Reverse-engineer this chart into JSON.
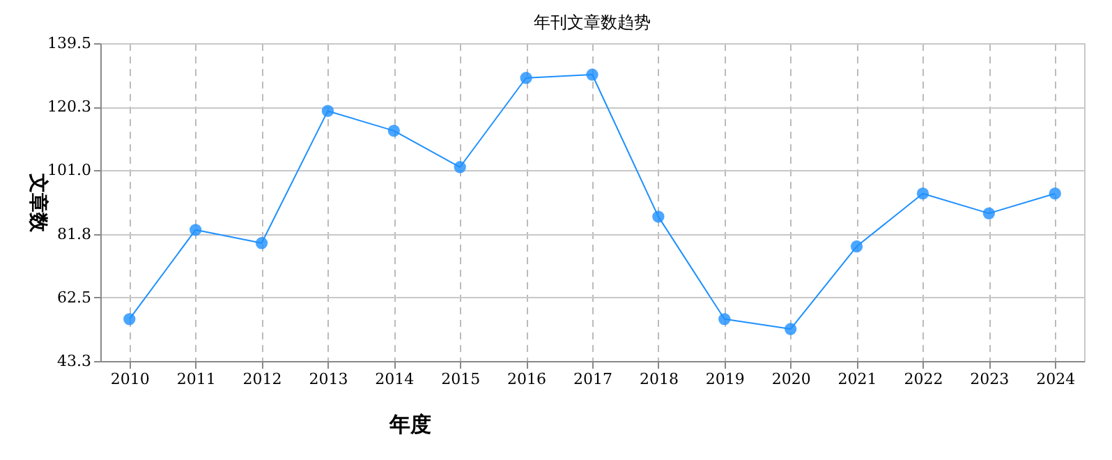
{
  "chart_data": {
    "type": "line",
    "title": "年刊文章数趋势",
    "xlabel": "年度",
    "ylabel": "文章数",
    "categories": [
      "2010",
      "2011",
      "2012",
      "2013",
      "2014",
      "2015",
      "2016",
      "2017",
      "2018",
      "2019",
      "2020",
      "2021",
      "2022",
      "2023",
      "2024"
    ],
    "series": [
      {
        "color": "#1e90ff",
        "values": [
          56,
          83,
          79,
          119,
          113,
          102,
          129,
          130,
          87,
          56,
          53,
          78,
          94,
          88,
          94
        ]
      }
    ],
    "ylim": [
      43.3,
      139.5
    ],
    "yticks": [
      43.3,
      62.5,
      81.8,
      {
        "value": 101,
        "label": "101.0"
      },
      120.3,
      139.5
    ],
    "grid": true,
    "marker": "circle",
    "line_style": "solid"
  }
}
